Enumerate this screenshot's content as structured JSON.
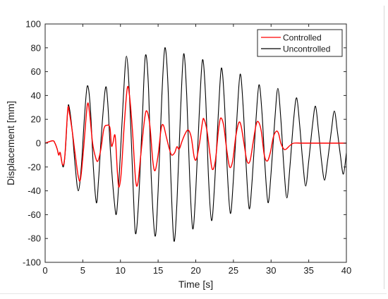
{
  "chart_data": {
    "type": "line",
    "title": "",
    "xlabel": "Time [s]",
    "ylabel": "Displacement [mm]",
    "xlim": [
      0,
      40
    ],
    "ylim": [
      -100,
      100
    ],
    "xticks": [
      0,
      5,
      10,
      15,
      20,
      25,
      30,
      35,
      40
    ],
    "yticks": [
      -100,
      -80,
      -60,
      -40,
      -20,
      0,
      20,
      40,
      60,
      80,
      100
    ],
    "grid": false,
    "legend_position": "top-right",
    "series": [
      {
        "name": "Controlled",
        "color": "#ff0000",
        "points": [
          [
            0,
            0
          ],
          [
            1.0,
            2
          ],
          [
            1.3,
            0
          ],
          [
            1.6,
            -5
          ],
          [
            1.8,
            -10
          ],
          [
            2.0,
            -8
          ],
          [
            2.3,
            -18
          ],
          [
            2.6,
            -12
          ],
          [
            3.0,
            28
          ],
          [
            3.2,
            26
          ],
          [
            3.6,
            10
          ],
          [
            4.0,
            -10
          ],
          [
            4.4,
            -28
          ],
          [
            4.7,
            -30
          ],
          [
            5.1,
            -5
          ],
          [
            5.6,
            32
          ],
          [
            5.9,
            25
          ],
          [
            6.3,
            0
          ],
          [
            6.7,
            -12
          ],
          [
            7.0,
            -15
          ],
          [
            7.4,
            -5
          ],
          [
            7.8,
            12
          ],
          [
            8.2,
            15
          ],
          [
            8.6,
            13
          ],
          [
            8.8,
            -2
          ],
          [
            9.0,
            0
          ],
          [
            9.3,
            6
          ],
          [
            9.6,
            -25
          ],
          [
            9.8,
            -37
          ],
          [
            10.1,
            -25
          ],
          [
            10.5,
            15
          ],
          [
            10.9,
            46
          ],
          [
            11.2,
            40
          ],
          [
            11.6,
            10
          ],
          [
            12.0,
            -30
          ],
          [
            12.3,
            -34
          ],
          [
            12.7,
            -10
          ],
          [
            13.2,
            20
          ],
          [
            13.5,
            27
          ],
          [
            13.9,
            15
          ],
          [
            14.3,
            -15
          ],
          [
            14.6,
            -23
          ],
          [
            15.0,
            -10
          ],
          [
            15.4,
            12
          ],
          [
            15.7,
            15
          ],
          [
            16.1,
            5
          ],
          [
            16.5,
            -5
          ],
          [
            16.8,
            -10
          ],
          [
            17.2,
            -8
          ],
          [
            17.5,
            -3
          ],
          [
            17.8,
            -5
          ],
          [
            18.2,
            2
          ],
          [
            18.6,
            8
          ],
          [
            19.0,
            11
          ],
          [
            19.4,
            5
          ],
          [
            19.8,
            -12
          ],
          [
            20.1,
            -13
          ],
          [
            20.5,
            0
          ],
          [
            20.9,
            18
          ],
          [
            21.1,
            20
          ],
          [
            21.5,
            10
          ],
          [
            21.9,
            -10
          ],
          [
            22.2,
            -22
          ],
          [
            22.6,
            -15
          ],
          [
            23.0,
            10
          ],
          [
            23.3,
            21
          ],
          [
            23.7,
            15
          ],
          [
            24.1,
            -5
          ],
          [
            24.5,
            -20
          ],
          [
            24.9,
            -15
          ],
          [
            25.3,
            5
          ],
          [
            25.7,
            17
          ],
          [
            26.0,
            15
          ],
          [
            26.4,
            0
          ],
          [
            26.8,
            -15
          ],
          [
            27.2,
            -15
          ],
          [
            27.6,
            0
          ],
          [
            28.0,
            15
          ],
          [
            28.3,
            18
          ],
          [
            28.7,
            10
          ],
          [
            29.1,
            -10
          ],
          [
            29.5,
            -15
          ],
          [
            29.9,
            -8
          ],
          [
            30.3,
            5
          ],
          [
            30.7,
            10
          ],
          [
            31.0,
            8
          ],
          [
            31.3,
            0
          ],
          [
            31.7,
            -5
          ],
          [
            32.0,
            -5
          ],
          [
            32.5,
            -2
          ],
          [
            33.0,
            0
          ],
          [
            34.0,
            0
          ],
          [
            35.0,
            0
          ],
          [
            36.0,
            0
          ],
          [
            37.0,
            0
          ],
          [
            38.0,
            0
          ],
          [
            39.0,
            0
          ],
          [
            40.0,
            0
          ]
        ]
      },
      {
        "name": "Uncontrolled",
        "color": "#000000",
        "points": [
          [
            0,
            0
          ],
          [
            1.0,
            2
          ],
          [
            1.3,
            0
          ],
          [
            1.6,
            -5
          ],
          [
            1.8,
            -10
          ],
          [
            2.0,
            -8
          ],
          [
            2.4,
            -20
          ],
          [
            2.7,
            -5
          ],
          [
            3.0,
            28
          ],
          [
            3.2,
            30
          ],
          [
            3.6,
            10
          ],
          [
            4.0,
            -20
          ],
          [
            4.4,
            -40
          ],
          [
            4.8,
            -20
          ],
          [
            5.2,
            20
          ],
          [
            5.6,
            48
          ],
          [
            6.0,
            30
          ],
          [
            6.4,
            -20
          ],
          [
            6.8,
            -50
          ],
          [
            7.1,
            -30
          ],
          [
            7.5,
            10
          ],
          [
            8.0,
            46
          ],
          [
            8.3,
            35
          ],
          [
            8.7,
            -10
          ],
          [
            9.2,
            -50
          ],
          [
            9.5,
            -58
          ],
          [
            9.9,
            -20
          ],
          [
            10.4,
            40
          ],
          [
            10.8,
            73
          ],
          [
            11.2,
            40
          ],
          [
            11.7,
            -40
          ],
          [
            12.0,
            -76
          ],
          [
            12.4,
            -50
          ],
          [
            12.9,
            20
          ],
          [
            13.3,
            73
          ],
          [
            13.7,
            50
          ],
          [
            14.1,
            -30
          ],
          [
            14.6,
            -78
          ],
          [
            15.0,
            -40
          ],
          [
            15.5,
            40
          ],
          [
            15.9,
            80
          ],
          [
            16.3,
            50
          ],
          [
            16.7,
            -30
          ],
          [
            17.1,
            -82
          ],
          [
            17.5,
            -50
          ],
          [
            18.0,
            30
          ],
          [
            18.4,
            75
          ],
          [
            18.8,
            40
          ],
          [
            19.2,
            -30
          ],
          [
            19.6,
            -72
          ],
          [
            20.0,
            -40
          ],
          [
            20.5,
            30
          ],
          [
            20.9,
            70
          ],
          [
            21.3,
            40
          ],
          [
            21.7,
            -30
          ],
          [
            22.1,
            -65
          ],
          [
            22.5,
            -35
          ],
          [
            23.0,
            25
          ],
          [
            23.4,
            63
          ],
          [
            23.8,
            35
          ],
          [
            24.2,
            -25
          ],
          [
            24.6,
            -59
          ],
          [
            25.0,
            -30
          ],
          [
            25.5,
            25
          ],
          [
            25.9,
            58
          ],
          [
            26.3,
            30
          ],
          [
            26.7,
            -20
          ],
          [
            27.1,
            -55
          ],
          [
            27.5,
            -30
          ],
          [
            28.0,
            20
          ],
          [
            28.4,
            49
          ],
          [
            28.8,
            25
          ],
          [
            29.2,
            -20
          ],
          [
            29.6,
            -50
          ],
          [
            30.0,
            -25
          ],
          [
            30.5,
            20
          ],
          [
            30.9,
            46
          ],
          [
            31.3,
            20
          ],
          [
            31.7,
            -20
          ],
          [
            32.1,
            -46
          ],
          [
            32.5,
            -20
          ],
          [
            33.0,
            20
          ],
          [
            33.4,
            38
          ],
          [
            33.8,
            15
          ],
          [
            34.2,
            -15
          ],
          [
            34.6,
            -36
          ],
          [
            35.0,
            -15
          ],
          [
            35.5,
            15
          ],
          [
            35.9,
            31
          ],
          [
            36.3,
            10
          ],
          [
            36.7,
            -15
          ],
          [
            37.1,
            -31
          ],
          [
            37.5,
            -15
          ],
          [
            38.0,
            10
          ],
          [
            38.4,
            27
          ],
          [
            38.8,
            10
          ],
          [
            39.2,
            -10
          ],
          [
            39.6,
            -26
          ],
          [
            40.0,
            -8
          ]
        ]
      }
    ]
  }
}
